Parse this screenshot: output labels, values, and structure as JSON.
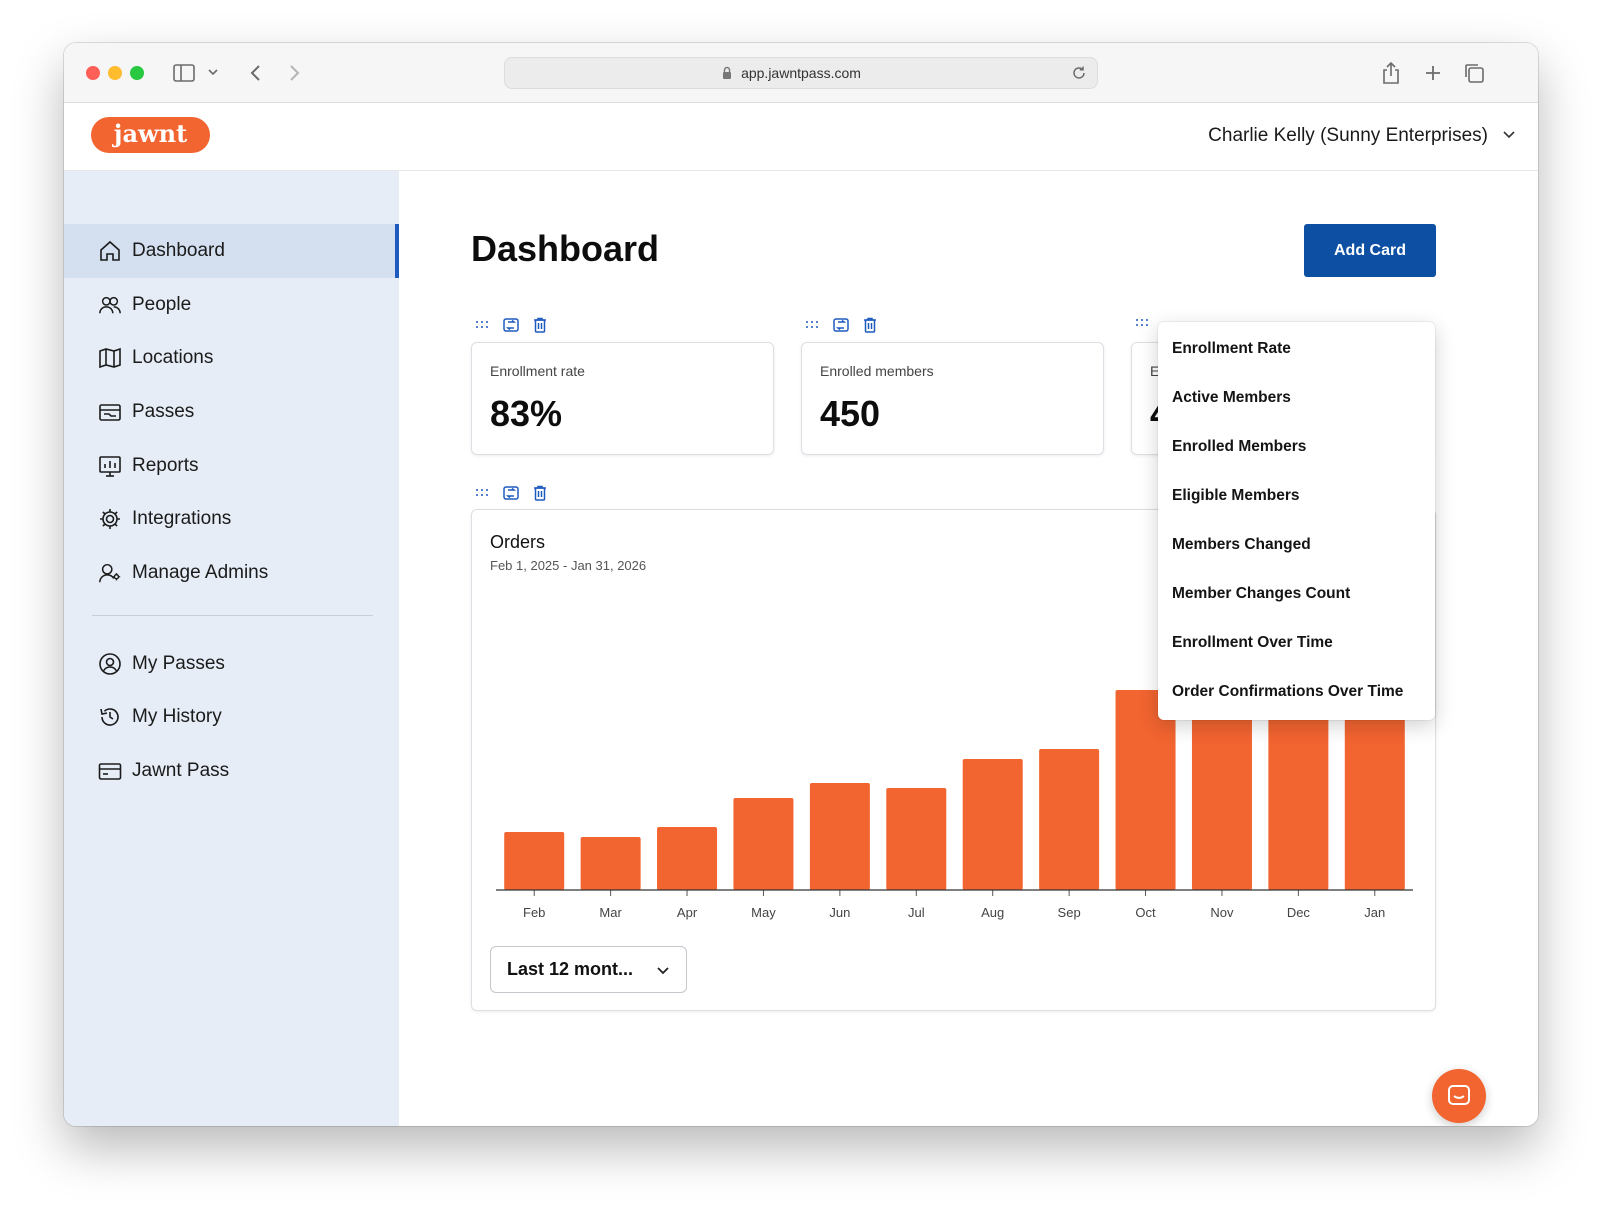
{
  "browser": {
    "url": "app.jawntpass.com"
  },
  "header": {
    "logo_text": "jawnt",
    "user_label": "Charlie Kelly (Sunny Enterprises)"
  },
  "sidebar": {
    "items": [
      {
        "label": "Dashboard",
        "icon": "home-icon",
        "active": true
      },
      {
        "label": "People",
        "icon": "people-icon"
      },
      {
        "label": "Locations",
        "icon": "map-icon"
      },
      {
        "label": "Passes",
        "icon": "passes-icon"
      },
      {
        "label": "Reports",
        "icon": "reports-icon"
      },
      {
        "label": "Integrations",
        "icon": "gear-icon"
      },
      {
        "label": "Manage Admins",
        "icon": "admin-icon"
      }
    ],
    "secondary_items": [
      {
        "label": "My Passes",
        "icon": "user-circle-icon"
      },
      {
        "label": "My History",
        "icon": "history-icon"
      },
      {
        "label": "Jawnt Pass",
        "icon": "card-icon"
      }
    ]
  },
  "main": {
    "title": "Dashboard",
    "add_card_label": "Add Card",
    "stats": [
      {
        "label": "Enrollment rate",
        "value": "83%"
      },
      {
        "label": "Enrolled members",
        "value": "450"
      },
      {
        "label": "E",
        "value": "4"
      }
    ],
    "range_select": "Last 12 mont..."
  },
  "add_card_menu": [
    "Enrollment Rate",
    "Active Members",
    "Enrolled Members",
    "Eligible Members",
    "Members Changed",
    "Member Changes Count",
    "Enrollment Over Time",
    "Order Confirmations Over Time"
  ],
  "colors": {
    "accent": "#f26430",
    "primary": "#0d4fa3",
    "sidebar_bg": "#e6edf7"
  },
  "chart_data": {
    "type": "bar",
    "title": "Orders",
    "subtitle": "Feb 1, 2025 - Jan 31, 2026",
    "categories": [
      "Feb",
      "Mar",
      "Apr",
      "May",
      "Jun",
      "Jul",
      "Aug",
      "Sep",
      "Oct",
      "Nov",
      "Dec",
      "Jan"
    ],
    "values": [
      58,
      53,
      63,
      92,
      107,
      102,
      131,
      141,
      200,
      200,
      210,
      210
    ],
    "ylim": [
      0,
      220
    ],
    "grid": false,
    "color": "#f26430"
  }
}
